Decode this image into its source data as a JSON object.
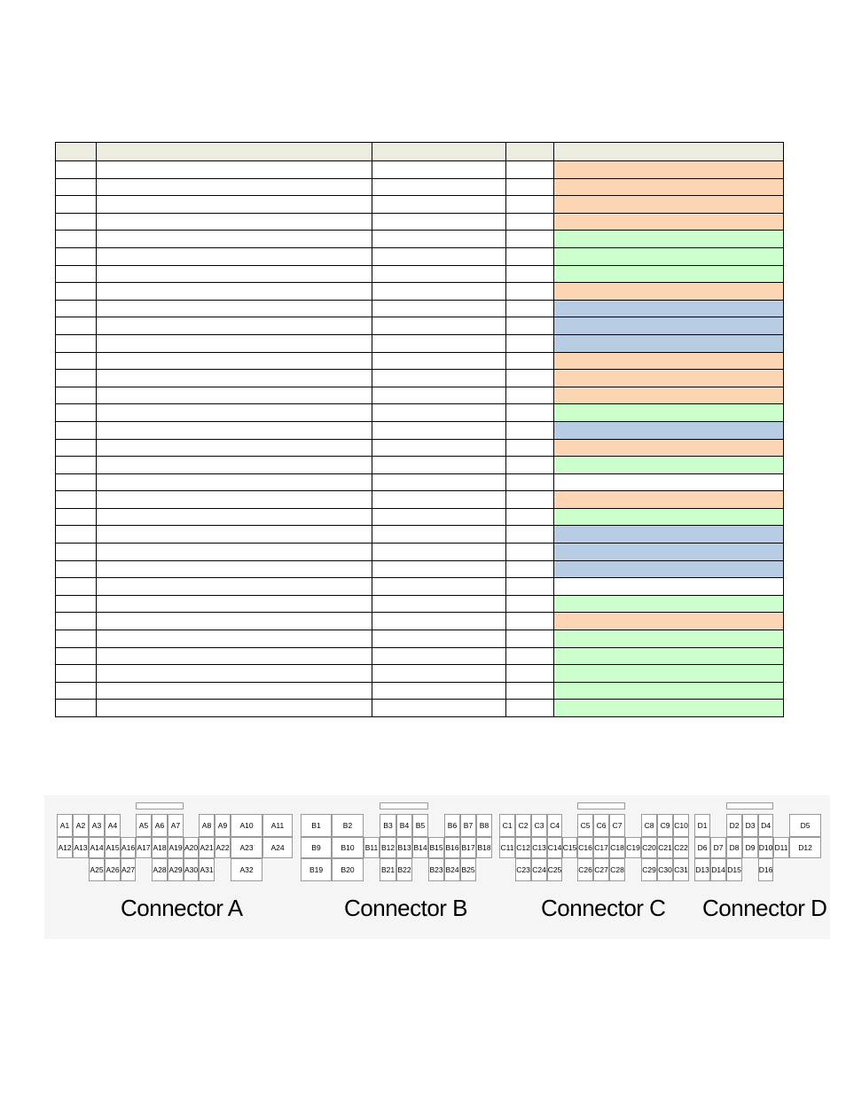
{
  "pin_table": {
    "header_status_color": "#eeece1",
    "row_status": [
      "orange",
      "orange",
      "orange",
      "orange",
      "green",
      "green",
      "green",
      "orange",
      "blue",
      "blue",
      "blue",
      "orange",
      "orange",
      "orange",
      "green",
      "blue",
      "orange",
      "green",
      "white",
      "orange",
      "green",
      "blue",
      "blue",
      "blue",
      "white",
      "green",
      "orange",
      "green",
      "green",
      "green",
      "green",
      "green"
    ],
    "status_colors": {
      "orange": "#fcd5b4",
      "green": "#ccffcc",
      "blue": "#b8cce4",
      "white": "#ffffff"
    }
  },
  "connectors": [
    {
      "label": "Connector A",
      "rows": [
        [
          "A1",
          "A2",
          "A3",
          "A4",
          "A5",
          "A6",
          "A7",
          "A8",
          "A9",
          "A10",
          "A11"
        ],
        [
          "A12",
          "A13",
          "A14",
          "A15",
          "A16",
          "A17",
          "A18",
          "A19",
          "A20",
          "A21",
          "A22",
          "A23",
          "A24"
        ],
        [
          "A25",
          "A26",
          "A27",
          "A28",
          "A29",
          "A30",
          "A31",
          "A32"
        ]
      ]
    },
    {
      "label": "Connector B",
      "rows": [
        [
          "B1",
          "B2",
          "B3",
          "B4",
          "B5",
          "B6",
          "B7",
          "B8"
        ],
        [
          "B9",
          "B10",
          "B11",
          "B12",
          "B13",
          "B14",
          "B15",
          "B16",
          "B17",
          "B18"
        ],
        [
          "B19",
          "B20",
          "B21",
          "B22",
          "B23",
          "B24",
          "B25"
        ]
      ]
    },
    {
      "label": "Connector C",
      "rows": [
        [
          "C1",
          "C2",
          "C3",
          "C4",
          "C5",
          "C6",
          "C7",
          "C8",
          "C9",
          "C10"
        ],
        [
          "C11",
          "C12",
          "C13",
          "C14",
          "C15",
          "C16",
          "C17",
          "C18",
          "C19",
          "C20",
          "C21",
          "C22"
        ],
        [
          "C23",
          "C24",
          "C25",
          "C26",
          "C27",
          "C28",
          "C29",
          "C30",
          "C31"
        ]
      ]
    },
    {
      "label": "Connector D",
      "rows": [
        [
          "D1",
          "D2",
          "D3",
          "D4",
          "D5"
        ],
        [
          "D6",
          "D7",
          "D8",
          "D9",
          "D10",
          "D11",
          "D12"
        ],
        [
          "D13",
          "D14",
          "D15",
          "D16"
        ]
      ]
    }
  ]
}
